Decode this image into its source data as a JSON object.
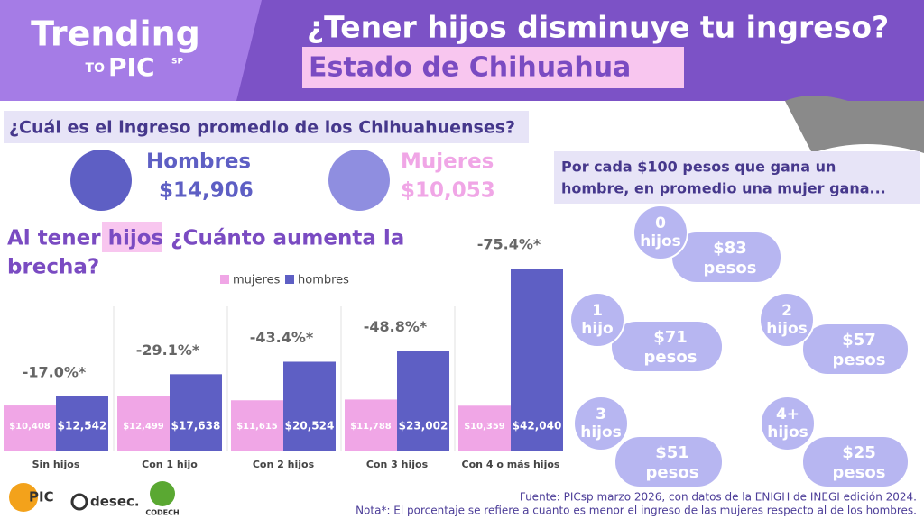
{
  "header": {
    "brand": "Trending",
    "brand_to": "TO",
    "brand_pic": "PIC",
    "brand_sp": "SP",
    "title": "¿Tener hijos disminuye tu ingreso?",
    "subtitle": "Estado de Chihuahua"
  },
  "income": {
    "question": "¿Cuál es el ingreso promedio de los Chihuahuenses?",
    "men_label": "Hombres",
    "men_value": "$14,906",
    "women_label": "Mujeres",
    "women_value": "$10,053"
  },
  "ratio": {
    "intro_1": "Por cada $100 pesos que gana un",
    "intro_2": "hombre, en promedio una mujer gana...",
    "bubbles": [
      {
        "count": "0",
        "unit": "hijos",
        "amount": "$83",
        "currency": "pesos"
      },
      {
        "count": "1",
        "unit": "hijo",
        "amount": "$71",
        "currency": "pesos"
      },
      {
        "count": "2",
        "unit": "hijos",
        "amount": "$57",
        "currency": "pesos"
      },
      {
        "count": "3",
        "unit": "hijos",
        "amount": "$51",
        "currency": "pesos"
      },
      {
        "count": "4+",
        "unit": "hijos",
        "amount": "$25",
        "currency": "pesos"
      }
    ]
  },
  "chart_data": {
    "type": "bar",
    "title_1": "Al tener hijos ¿Cuánto aumenta la",
    "title_2": "brecha?",
    "categories": [
      "Sin hijos",
      "Con 1 hijo",
      "Con 2 hijos",
      "Con 3 hijos",
      "Con 4 o más hijos"
    ],
    "series": [
      {
        "name": "mujeres",
        "color": "#f0a6e6",
        "values": [
          10408,
          12499,
          11615,
          11788,
          10359
        ],
        "value_labels": [
          "$10,408",
          "$12,499",
          "$11,615",
          "$11,788",
          "$10,359"
        ]
      },
      {
        "name": "hombres",
        "color": "#5e5fc4",
        "values": [
          12542,
          17638,
          20524,
          23002,
          42040
        ],
        "value_labels": [
          "$12,542",
          "$17,638",
          "$20,524",
          "$23,002",
          "$42,040"
        ]
      }
    ],
    "gaps": {
      "values": [
        -17.0,
        -29.1,
        -43.4,
        -48.8,
        -75.4
      ],
      "value_labels": [
        "-17.0%*",
        "-29.1%*",
        "-43.4%*",
        "-48.8%*",
        "-75.4%*"
      ]
    },
    "ylim": [
      0,
      45000
    ]
  },
  "footer": {
    "source": "Fuente: PICsp marzo 2026, con datos de la ENIGH de INEGI edición 2024.",
    "note": "Nota*: El porcentaje se refiere a cuanto es menor el ingreso de las mujeres respecto al de los hombres.",
    "logo_pic": "PIC",
    "logo_desec": "desec.",
    "logo_codech": "CODECH"
  }
}
